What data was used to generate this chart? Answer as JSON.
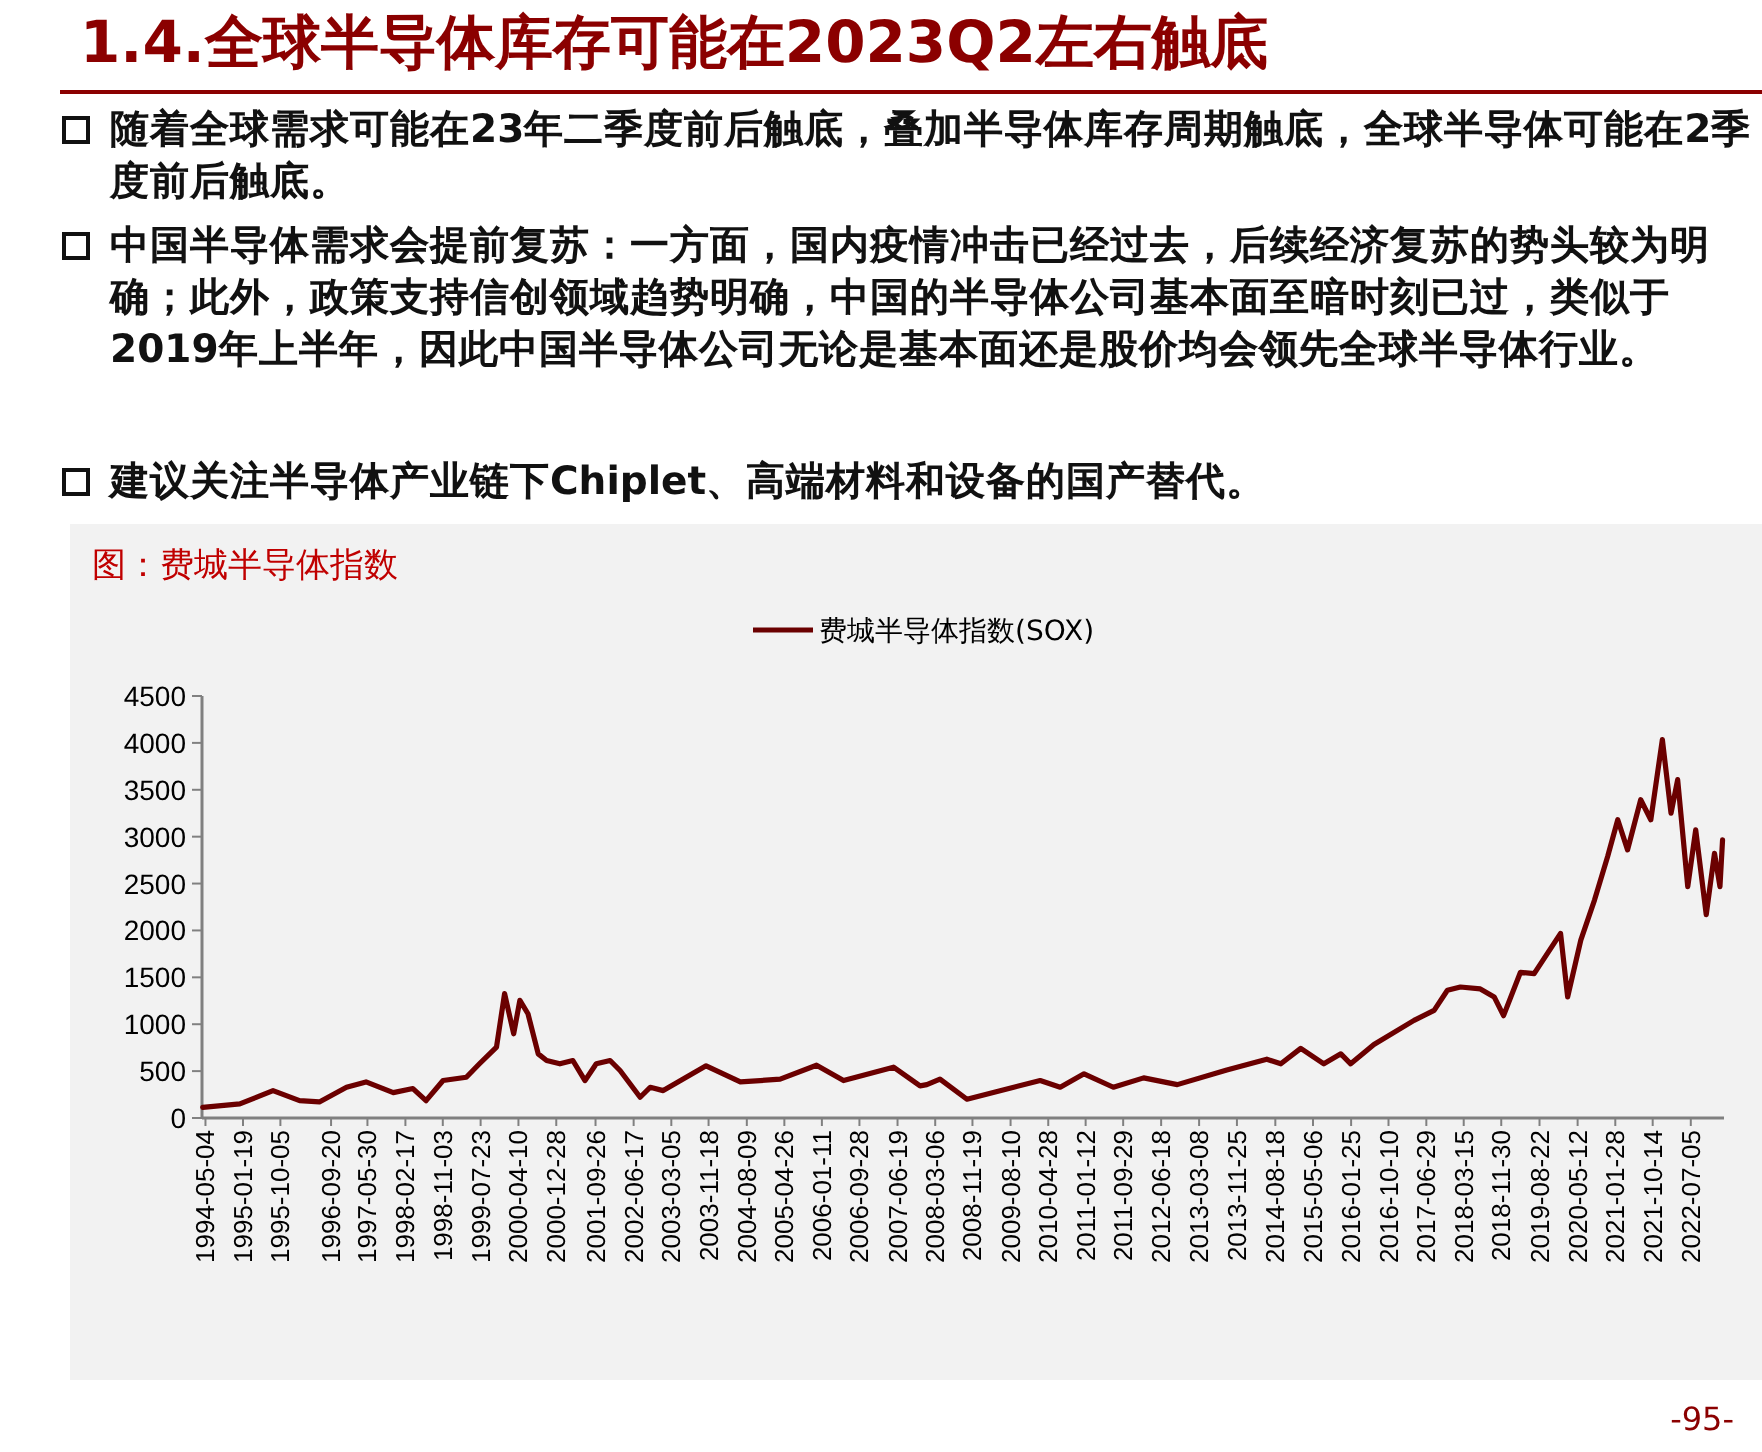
{
  "chart_data": {
    "type": "line",
    "title": "1.4.全球半导体库存可能在2023Q2左右触底",
    "subtitle": "图：费城半导体指数",
    "annotations": [
      "随着全球需求可能在23年二季度前后触底，叠加半导体库存周期触底，全球半导体可能在2季度前后触底。",
      "中国半导体需求会提前复苏：一方面，国内疫情冲击已经过去，后续经济复苏的势头较为明确；此外，政策支持信创领域趋势明确，中国的半导体公司基本面至暗时刻已过，类似于2019年上半年，因此中国半导体公司无论是基本面还是股价均会领先全球半导体行业。",
      "建议关注半导体产业链下Chiplet、高端材料和设备的国产替代。",
      "-95-"
    ],
    "x": [
      "1994-04-15",
      "1994-12-28",
      "1995-08-15",
      "1996-02-15",
      "1996-07-01",
      "1997-01-05",
      "1997-05-20",
      "1997-11-25",
      "1998-04-10",
      "1998-07-10",
      "1998-11-05",
      "1999-04-15",
      "1999-07-15",
      "1999-11-10",
      "2000-01-05",
      "2000-03-08",
      "2000-04-20",
      "2000-06-15",
      "2000-08-25",
      "2000-10-22",
      "2001-01-22",
      "2001-04-22",
      "2001-07-15",
      "2001-10-01",
      "2002-01-05",
      "2002-03-15",
      "2002-08-01",
      "2002-10-10",
      "2003-01-08",
      "2003-11-01",
      "2004-06-25",
      "2005-03-28",
      "2005-12-05",
      "2006-06-10",
      "2007-05-22",
      "2007-11-22",
      "2008-01-08",
      "2008-04-08",
      "2008-10-12",
      "2009-09-01",
      "2010-03-03",
      "2010-07-20",
      "2011-01-01",
      "2011-07-23",
      "2012-02-18",
      "2012-10-08",
      "2013-09-16",
      "2014-06-20",
      "2014-09-25",
      "2015-02-10",
      "2015-07-20",
      "2015-11-15",
      "2016-01-22",
      "2016-07-01",
      "2017-04-05",
      "2017-08-22",
      "2017-11-22",
      "2018-02-20",
      "2018-07-08",
      "2018-10-12",
      "2018-12-16",
      "2019-04-12",
      "2019-07-16",
      "2020-01-15",
      "2020-03-04",
      "2020-06-03",
      "2020-09-06",
      "2020-12-06",
      "2021-02-14",
      "2021-04-23",
      "2021-07-23",
      "2021-10-01",
      "2021-12-20",
      "2022-02-18",
      "2022-04-05",
      "2022-06-14",
      "2022-08-08",
      "2022-10-20",
      "2022-12-16",
      "2023-01-23",
      "2023-02-10"
    ],
    "series": [
      {
        "name": "费城半导体指数(SOX)",
        "color": "#6b0000",
        "values": [
          114,
          150,
          292,
          185,
          171,
          328,
          385,
          271,
          314,
          185,
          400,
          435,
          578,
          756,
          1326,
          898,
          1255,
          1112,
          684,
          613,
          578,
          613,
          399,
          578,
          613,
          506,
          221,
          328,
          292,
          556,
          385,
          414,
          563,
          399,
          542,
          342,
          356,
          414,
          200,
          328,
          399,
          328,
          471,
          328,
          428,
          356,
          513,
          627,
          578,
          742,
          578,
          684,
          578,
          784,
          1041,
          1148,
          1362,
          1397,
          1376,
          1291,
          1091,
          1554,
          1540,
          1968,
          1291,
          1897,
          2324,
          2788,
          3180,
          2859,
          3394,
          3180,
          4036,
          3251,
          3608,
          2467,
          3073,
          2168,
          2823,
          2467,
          2966
        ]
      }
    ],
    "xlim": [
      "1994-04-10",
      "2023-02-20"
    ],
    "xticks": [
      "1994-05-04",
      "1995-01-19",
      "1995-10-05",
      "1996-09-20",
      "1997-05-30",
      "1998-02-17",
      "1998-11-03",
      "1999-07-23",
      "2000-04-10",
      "2000-12-28",
      "2001-09-26",
      "2002-06-17",
      "2003-03-05",
      "2003-11-18",
      "2004-08-09",
      "2005-04-26",
      "2006-01-11",
      "2006-09-28",
      "2007-06-19",
      "2008-03-06",
      "2008-11-19",
      "2009-08-10",
      "2010-04-28",
      "2011-01-12",
      "2011-09-29",
      "2012-06-18",
      "2013-03-08",
      "2013-11-25",
      "2014-08-18",
      "2015-05-06",
      "2016-01-25",
      "2016-10-10",
      "2017-06-29",
      "2018-03-15",
      "2018-11-30",
      "2019-08-22",
      "2020-05-12",
      "2021-01-28",
      "2021-10-14",
      "2022-07-05"
    ],
    "ylim": [
      0,
      4500
    ],
    "yticks": [
      0,
      500,
      1000,
      1500,
      2000,
      2500,
      3000,
      3500,
      4000,
      4500
    ],
    "legend": "top",
    "marker": "none",
    "line_style": "solid"
  }
}
